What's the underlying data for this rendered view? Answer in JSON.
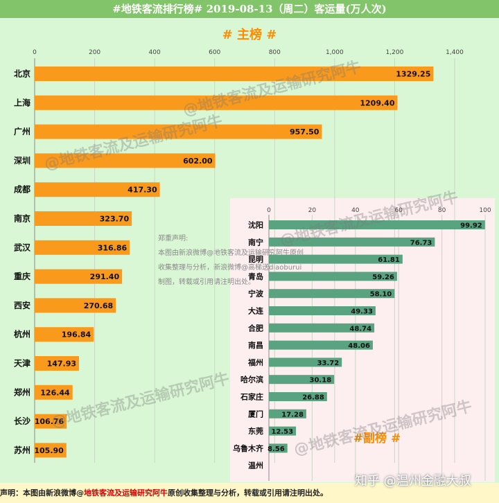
{
  "header": {
    "title": "#地铁客流排行榜# 2019-08-13（周二）客运量(万人次)"
  },
  "notice": {
    "title": "郑重声明:",
    "lines": [
      "本图由新浪微博@地铁客流及运输研究阿牛原创",
      "收集整理与分析，新浪微博@高梯送diaoburui",
      "制图，转载或引用请注明出处。"
    ]
  },
  "footer": {
    "prefix": "声明：本图由新浪微博@",
    "account": "地铁客流及运输研究阿牛",
    "suffix": "原创收集整理与分析，转载或引用请注明出处。"
  },
  "watermarks": {
    "weibo": "@地铁客流及运输研究阿牛",
    "zhihu": "知乎 @温州金融大叔"
  },
  "colors": {
    "main_bar": "#f99a1c",
    "sub_bar": "#5aa380",
    "title_bar": "#82c46a",
    "title_accent": "#ff8c00"
  },
  "chart_data": [
    {
      "type": "bar",
      "orientation": "horizontal",
      "title": "# 主榜 #",
      "xlim": [
        0,
        1400
      ],
      "xticks": [
        "0",
        "200",
        "400",
        "600",
        "800",
        "1,000",
        "1,200",
        "1,400"
      ],
      "categories": [
        "北京",
        "上海",
        "广州",
        "深圳",
        "成都",
        "南京",
        "武汉",
        "重庆",
        "西安",
        "杭州",
        "天津",
        "郑州",
        "长沙",
        "苏州"
      ],
      "values": [
        1329.25,
        1209.4,
        957.5,
        602.0,
        417.3,
        323.7,
        316.86,
        291.4,
        270.68,
        196.84,
        147.93,
        126.44,
        106.76,
        105.9
      ],
      "labels": [
        "1329.25",
        "1209.40",
        "957.50",
        "602.00",
        "417.30",
        "323.70",
        "316.86",
        "291.40",
        "270.68",
        "196.84",
        "147.93",
        "126.44",
        "106.76",
        "105.90"
      ],
      "grid": true
    },
    {
      "type": "bar",
      "orientation": "horizontal",
      "title": "#副榜 #",
      "xlim": [
        0,
        100
      ],
      "xticks": [
        "0",
        "20",
        "40",
        "60",
        "80",
        "100"
      ],
      "categories": [
        "沈阳",
        "南宁",
        "昆明",
        "青岛",
        "宁波",
        "大连",
        "合肥",
        "南昌",
        "福州",
        "哈尔滨",
        "石家庄",
        "厦门",
        "东莞",
        "乌鲁木齐",
        "温州"
      ],
      "values": [
        99.92,
        76.73,
        61.81,
        59.26,
        58.1,
        49.33,
        48.74,
        48.06,
        33.72,
        30.18,
        26.88,
        17.28,
        12.53,
        8.56,
        null
      ],
      "labels": [
        "99.92",
        "76.73",
        "61.81",
        "59.26",
        "58.10",
        "49.33",
        "48.74",
        "48.06",
        "33.72",
        "30.18",
        "26.88",
        "17.28",
        "12.53",
        "8.56",
        ""
      ],
      "grid": true
    }
  ]
}
